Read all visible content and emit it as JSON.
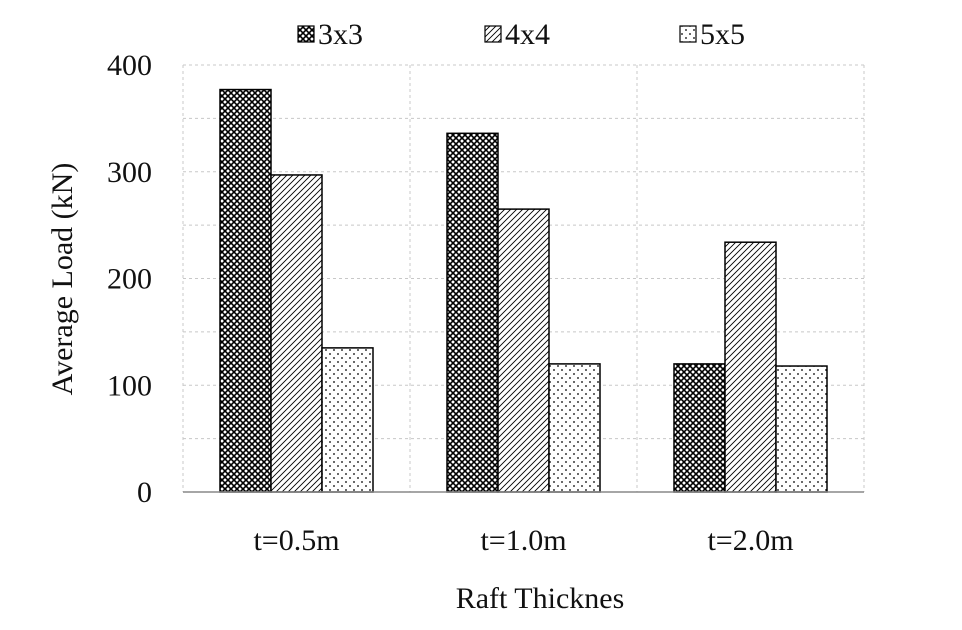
{
  "chart_data": {
    "type": "bar",
    "categories": [
      "t=0.5m",
      "t=1.0m",
      "t=2.0m"
    ],
    "series": [
      {
        "name": "3x3",
        "values": [
          377,
          336,
          120
        ],
        "pattern": "crosshatch"
      },
      {
        "name": "4x4",
        "values": [
          297,
          265,
          234
        ],
        "pattern": "diagonal"
      },
      {
        "name": "5x5",
        "values": [
          135,
          120,
          118
        ],
        "pattern": "dots"
      }
    ],
    "xlabel": "Raft Thicknes",
    "ylabel": "Average Load (kN)",
    "ylim": [
      0,
      400
    ],
    "yticks": [
      0,
      100,
      200,
      300,
      400
    ],
    "grid": true,
    "legend_position": "top",
    "colors": {
      "bar_outline": "#000000",
      "grid": "#c8c8c8",
      "axis": "#888888",
      "fill": "#ffffff"
    }
  }
}
